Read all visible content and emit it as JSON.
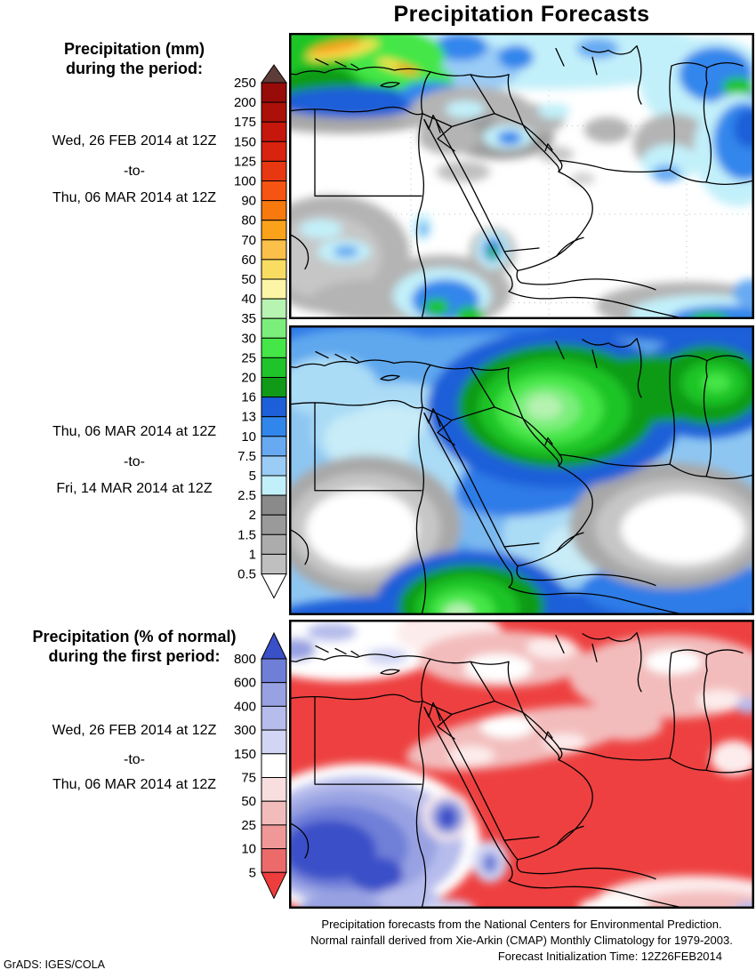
{
  "title": "Precipitation Forecasts",
  "left_labels": {
    "panel1": {
      "heading1": "Precipitation (mm)",
      "heading2": "during the period:",
      "date_start": "Wed, 26 FEB 2014 at 12Z",
      "separator": "-to-",
      "date_end": "Thu, 06 MAR 2014 at 12Z"
    },
    "panel2": {
      "date_start": "Thu, 06 MAR 2014 at 12Z",
      "separator": "-to-",
      "date_end": "Fri, 14 MAR 2014 at 12Z"
    },
    "panel3": {
      "heading1": "Precipitation (% of normal)",
      "heading2": "during the first period:",
      "date_start": "Wed, 26 FEB 2014 at 12Z",
      "separator": "-to-",
      "date_end": "Thu, 06 MAR 2014 at 12Z"
    }
  },
  "colorbars": {
    "mm": {
      "labels": [
        "250",
        "200",
        "175",
        "150",
        "125",
        "100",
        "90",
        "80",
        "70",
        "60",
        "50",
        "40",
        "35",
        "30",
        "25",
        "20",
        "16",
        "13",
        "10",
        "7.5",
        "5",
        "2.5",
        "2",
        "1.5",
        "1",
        "0.5"
      ],
      "cell_colors": [
        "#970b08",
        "#ab1109",
        "#c5170c",
        "#d8230e",
        "#e73811",
        "#f55412",
        "#f8790d",
        "#faa21b",
        "#fbc04a",
        "#f9dd62",
        "#fdf5a6",
        "#b7f3b1",
        "#7cee7c",
        "#45e647",
        "#1fc32a",
        "#109a18",
        "#1c5fd8",
        "#3186ec",
        "#67aaf2",
        "#9accf6",
        "#c2f0fa",
        "#8a8a8a",
        "#9a9a9a",
        "#acacac",
        "#bfbfbf"
      ],
      "top_arrow_color": "#5e3c38",
      "bottom_arrow_color": "#ffffff"
    },
    "percent": {
      "labels": [
        "800",
        "600",
        "400",
        "300",
        "150",
        "75",
        "50",
        "25",
        "10",
        "5"
      ],
      "cell_colors": [
        "#6f7fd8",
        "#98a2e2",
        "#b6bcec",
        "#d2d6f4",
        "#ffffff",
        "#f8dede",
        "#f3bcbc",
        "#f09898",
        "#ec6a6a"
      ],
      "top_arrow_color": "#3a50c8",
      "bottom_arrow_color": "#ee3d3d"
    }
  },
  "footer": {
    "line1": "Precipitation forecasts from the National Centers for Environmental Prediction.",
    "line2": "Normal rainfall derived from Xie-Arkin (CMAP) Monthly Climatology for 1979-2003.",
    "line3": "Forecast Initialization Time: 12Z26FEB2014"
  },
  "credit": "GrADS: IGES/COLA"
}
